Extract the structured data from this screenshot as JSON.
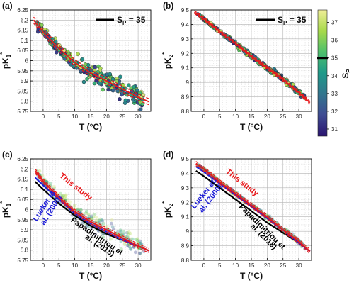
{
  "colors": {
    "fit": "#e8191c",
    "lueker": "#1f1fd6",
    "papadimitriou": "#000000",
    "grid": "#c9c9c9"
  },
  "colorbar": {
    "label": "S",
    "label_sub": "P",
    "ticks": [
      "37",
      "36",
      "35",
      "34",
      "33",
      "32",
      "31"
    ],
    "range": [
      30.6,
      37.7
    ],
    "marker": 35,
    "stops": [
      "#2b1470",
      "#3f4c92",
      "#33758e",
      "#1f9a89",
      "#4fc06b",
      "#a6d94a",
      "#f0ee98"
    ]
  },
  "chart_data": [
    {
      "panel": "(a)",
      "type": "scatter",
      "xlabel": "T",
      "xlabel_unit": "(°C)",
      "ylabel": "pK",
      "ylabel_sub": "1",
      "ylabel_sup": "*",
      "xlim": [
        -4,
        34
      ],
      "ylim": [
        5.75,
        6.25
      ],
      "xticks": [
        "0",
        "5",
        "10",
        "15",
        "20",
        "25",
        "30"
      ],
      "yticks": [
        "5.75",
        "5.8",
        "5.85",
        "5.9",
        "5.95",
        "6",
        "6.05",
        "6.1",
        "6.15",
        "6.2",
        "6.25"
      ],
      "legend": {
        "text": "S",
        "sub": "P",
        "value": " = 35",
        "placement": "top-right"
      },
      "fit_line": {
        "color": "#e8191c",
        "x": [
          -2,
          0,
          5,
          10,
          15,
          20,
          25,
          30,
          33
        ],
        "y": [
          6.18,
          6.14,
          6.06,
          5.99,
          5.94,
          5.9,
          5.86,
          5.82,
          5.8
        ],
        "ci_halfwidth": 0.015
      },
      "scatter_description": "about 290 observations between -2 and 32 °C, coloured by salinity S_P"
    },
    {
      "panel": "(b)",
      "type": "scatter",
      "xlabel": "T",
      "xlabel_unit": "(°C)",
      "ylabel": "pK",
      "ylabel_sub": "2",
      "ylabel_sup": "*",
      "xlim": [
        -4,
        34
      ],
      "ylim": [
        8.8,
        9.5
      ],
      "xticks": [
        "0",
        "5",
        "10",
        "15",
        "20",
        "25",
        "30"
      ],
      "yticks": [
        "8.8",
        "8.9",
        "9",
        "9.1",
        "9.2",
        "9.3",
        "9.4",
        "9.5"
      ],
      "legend": {
        "text": "S",
        "sub": "P",
        "value": " = 35",
        "placement": "top-right"
      },
      "fit_line": {
        "color": "#e8191c",
        "x": [
          -2,
          0,
          5,
          10,
          15,
          20,
          25,
          30,
          33
        ],
        "y": [
          9.47,
          9.44,
          9.35,
          9.27,
          9.18,
          9.1,
          9.02,
          8.93,
          8.87
        ],
        "ci_halfwidth": 0.01
      },
      "scatter_description": "about 290 observations between -2 and 32 °C, coloured by salinity S_P"
    },
    {
      "panel": "(c)",
      "type": "line",
      "xlabel": "T",
      "xlabel_unit": "(°C)",
      "ylabel": "pK",
      "ylabel_sub": "1",
      "ylabel_sup": "*",
      "xlim": [
        -4,
        34
      ],
      "ylim": [
        5.75,
        6.25
      ],
      "xticks": [
        "0",
        "5",
        "10",
        "15",
        "20",
        "25",
        "30"
      ],
      "yticks": [
        "5.75",
        "5.8",
        "5.85",
        "5.9",
        "5.95",
        "6",
        "6.05",
        "6.1",
        "6.15",
        "6.2",
        "6.25"
      ],
      "series": [
        {
          "name": "This study",
          "color": "#e8191c",
          "x": [
            -2,
            0,
            5,
            10,
            15,
            20,
            25,
            30,
            33
          ],
          "y": [
            6.18,
            6.14,
            6.06,
            5.99,
            5.94,
            5.9,
            5.86,
            5.82,
            5.8
          ]
        },
        {
          "name": "Lueker et al. (2000)",
          "color": "#1f1fd6",
          "x": [
            -2,
            0,
            5,
            10,
            15,
            20,
            25,
            30,
            33
          ],
          "y": [
            6.15,
            6.12,
            6.05,
            5.98,
            5.93,
            5.89,
            5.85,
            5.82,
            5.8
          ]
        },
        {
          "name": "Papadimitriou et al. (2018)",
          "color": "#000000",
          "x": [
            -2,
            0,
            5,
            10,
            15,
            20,
            25,
            30,
            33
          ],
          "y": [
            6.13,
            6.1,
            6.03,
            5.97,
            5.92,
            5.88,
            5.85,
            5.82,
            5.8
          ]
        }
      ],
      "annotations": [
        {
          "text": "This study",
          "color": "#e8191c"
        },
        {
          "text": "Lueker et al. (2000)",
          "lines": [
            "Lueker et",
            "al. (2000)"
          ],
          "color": "#1f1fd6"
        },
        {
          "text": "Papadimitriou et al. (2018)",
          "lines": [
            "Papadimitriou et",
            "al. (2018)"
          ],
          "color": "#000000"
        }
      ]
    },
    {
      "panel": "(d)",
      "type": "line",
      "xlabel": "T",
      "xlabel_unit": "(°C)",
      "ylabel": "pK",
      "ylabel_sub": "2",
      "ylabel_sup": "*",
      "xlim": [
        -4,
        34
      ],
      "ylim": [
        8.8,
        9.5
      ],
      "xticks": [
        "0",
        "5",
        "10",
        "15",
        "20",
        "25",
        "30"
      ],
      "yticks": [
        "8.8",
        "8.9",
        "9",
        "9.1",
        "9.2",
        "9.3",
        "9.4",
        "9.5"
      ],
      "series": [
        {
          "name": "This study",
          "color": "#e8191c",
          "x": [
            -2,
            0,
            5,
            10,
            15,
            20,
            25,
            30,
            33
          ],
          "y": [
            9.46,
            9.43,
            9.34,
            9.26,
            9.18,
            9.1,
            9.01,
            8.93,
            8.87
          ]
        },
        {
          "name": "Lueker et al. (2000)",
          "color": "#1f1fd6",
          "x": [
            -2,
            0,
            5,
            10,
            15,
            20,
            25,
            30,
            33
          ],
          "y": [
            9.44,
            9.41,
            9.33,
            9.25,
            9.17,
            9.09,
            9.01,
            8.92,
            8.87
          ]
        },
        {
          "name": "Papadimitriou et al. (2018)",
          "color": "#000000",
          "x": [
            -2,
            0,
            5,
            10,
            15,
            20,
            25,
            30,
            33
          ],
          "y": [
            9.41,
            9.38,
            9.3,
            9.22,
            9.14,
            9.06,
            8.99,
            8.92,
            8.87
          ]
        }
      ],
      "annotations": [
        {
          "text": "This study",
          "color": "#e8191c"
        },
        {
          "text": "Lueker et al. (2000)",
          "lines": [
            "Lueker et",
            "al. (2000)"
          ],
          "color": "#1f1fd6"
        },
        {
          "text": "Papadimitriou et al. (2018)",
          "lines": [
            "Papadimitriou et",
            "al. (2018)"
          ],
          "color": "#000000"
        }
      ]
    }
  ]
}
